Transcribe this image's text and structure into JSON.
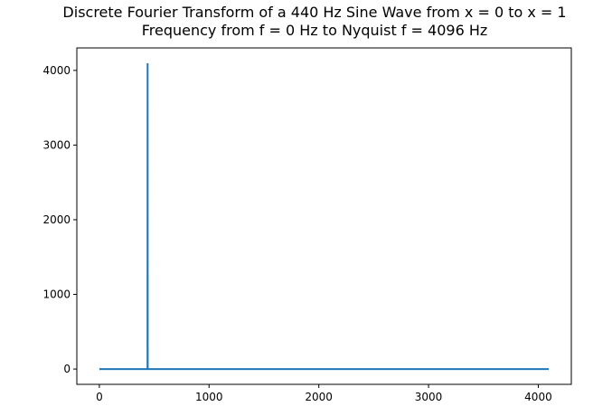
{
  "chart_data": {
    "type": "line",
    "title": "Discrete Fourier Transform of a 440 Hz Sine Wave from x = 0 to x = 1",
    "subtitle": "Frequency from f = 0 Hz to Nyquist f = 4096 Hz",
    "xlabel": "",
    "ylabel": "",
    "xlim": [
      -205,
      4301
    ],
    "ylim": [
      -205,
      4301
    ],
    "xticks": [
      0,
      1000,
      2000,
      3000,
      4000
    ],
    "xtick_labels": [
      "0",
      "1000",
      "2000",
      "3000",
      "4000"
    ],
    "yticks": [
      0,
      1000,
      2000,
      3000,
      4000
    ],
    "ytick_labels": [
      "0",
      "1000",
      "2000",
      "3000",
      "4000"
    ],
    "grid": false,
    "legend": "none",
    "series": [
      {
        "color": "#1f77b4",
        "x": [
          0,
          439,
          440,
          441,
          4096
        ],
        "y": [
          0,
          0,
          4096,
          0,
          0
        ]
      }
    ]
  }
}
